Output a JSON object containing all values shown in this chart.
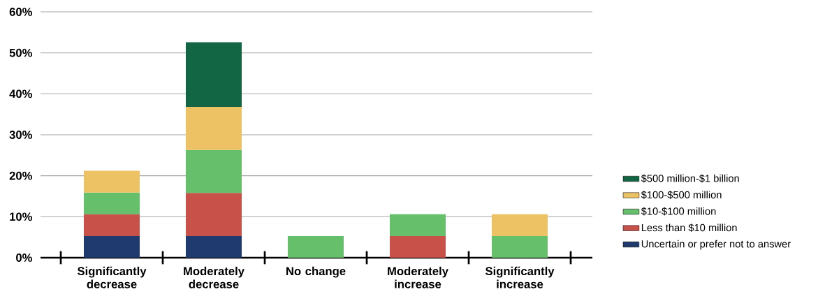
{
  "chart_data": {
    "type": "bar",
    "stacked": true,
    "categories": [
      "Significantly decrease",
      "Moderately decrease",
      "No change",
      "Moderately increase",
      "Significantly increase"
    ],
    "series": [
      {
        "name": "Uncertain or prefer not to answer",
        "color": "#1f3a6e",
        "values": [
          5.3,
          5.3,
          null,
          null,
          null
        ]
      },
      {
        "name": "Less than $10 million",
        "color": "#c8524a",
        "values": [
          5.3,
          10.5,
          null,
          5.3,
          null
        ]
      },
      {
        "name": "$10-$100 million",
        "color": "#66bf6a",
        "values": [
          5.3,
          10.5,
          5.3,
          5.3,
          5.3
        ]
      },
      {
        "name": "$100-$500 million",
        "color": "#ecc265",
        "values": [
          5.3,
          10.5,
          null,
          null,
          5.3
        ]
      },
      {
        "name": "$500 million-$1 billion",
        "color": "#126644",
        "values": [
          null,
          15.8,
          null,
          null,
          null
        ]
      }
    ],
    "ylim": [
      0,
      60
    ],
    "yticks": [
      {
        "value": 0,
        "label": "0%"
      },
      {
        "value": 10,
        "label": "10%"
      },
      {
        "value": 20,
        "label": "20%"
      },
      {
        "value": 30,
        "label": "30%"
      },
      {
        "value": 40,
        "label": "40%"
      },
      {
        "value": 50,
        "label": "50%"
      },
      {
        "value": 60,
        "label": "60%"
      }
    ],
    "grid": "y",
    "legend": "right"
  }
}
